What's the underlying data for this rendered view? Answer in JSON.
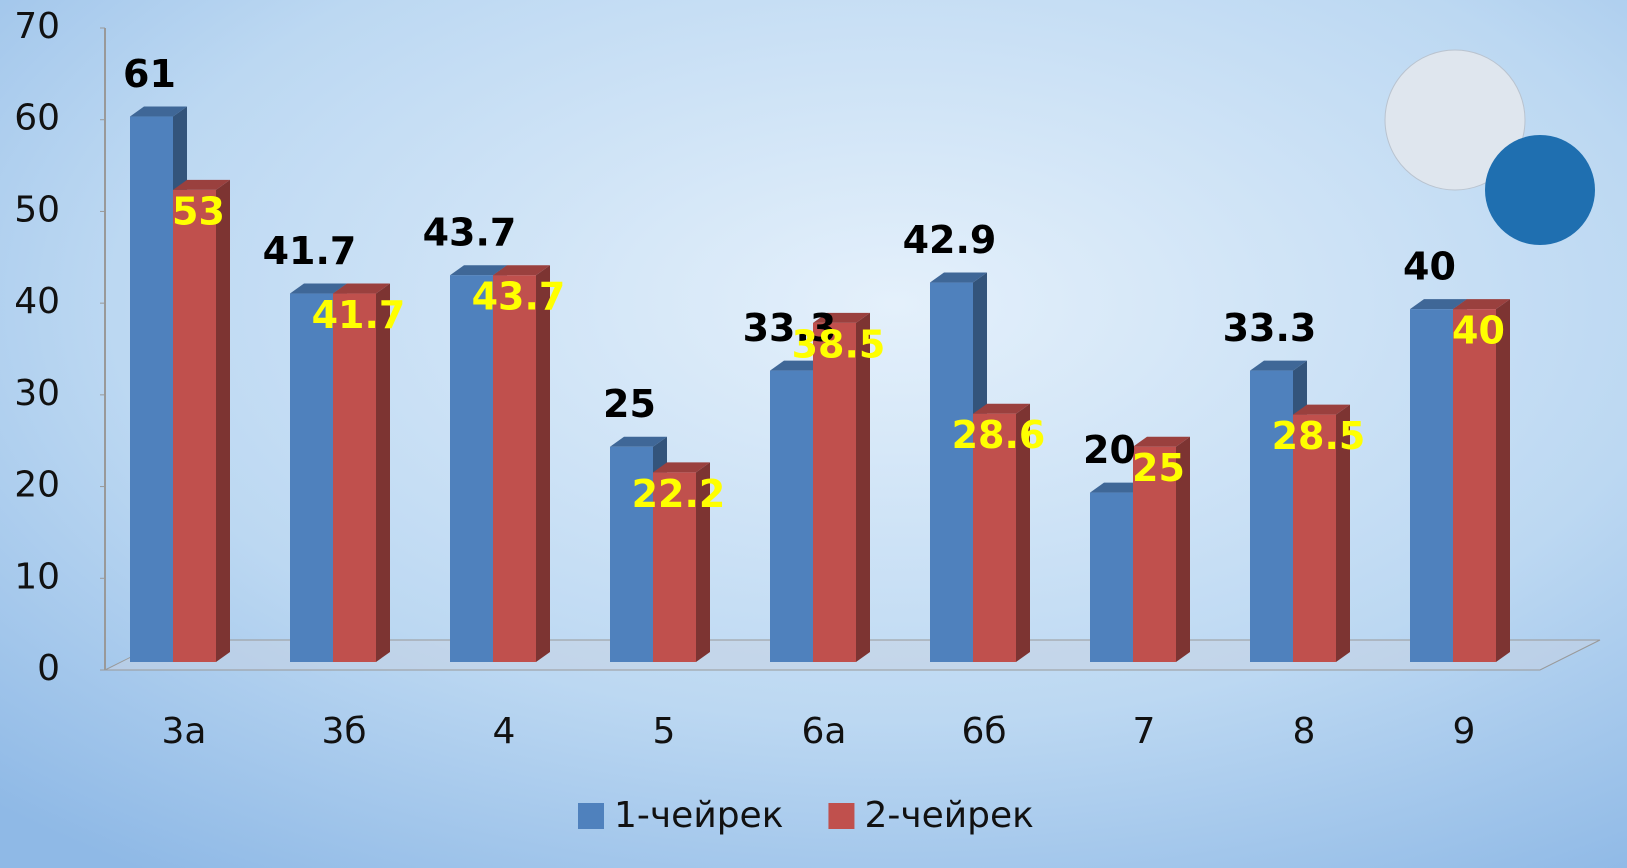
{
  "chart_data": {
    "type": "bar3d",
    "categories": [
      "3а",
      "3б",
      "4",
      "5",
      "6а",
      "6б",
      "7",
      "8",
      "9"
    ],
    "series": [
      {
        "name": "1-чейрек",
        "color": "#4f81bd",
        "values": [
          61,
          41.7,
          43.7,
          25,
          33.3,
          42.9,
          20,
          33.3,
          40
        ]
      },
      {
        "name": "2-чейрек",
        "color": "#c0504d",
        "values": [
          53,
          41.7,
          43.7,
          22.2,
          38.5,
          28.6,
          25,
          28.5,
          40
        ]
      }
    ],
    "ylim": [
      0,
      70
    ],
    "yticks": [
      0,
      10,
      20,
      30,
      40,
      50,
      60,
      70
    ],
    "grid": false,
    "legend": "bottom"
  }
}
